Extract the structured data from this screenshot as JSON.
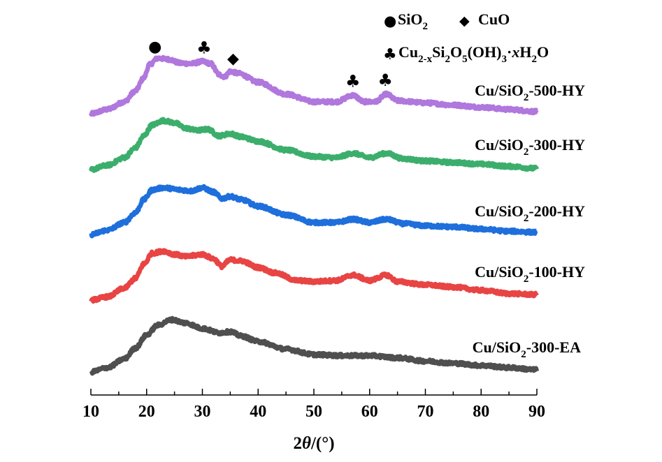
{
  "chart_data": {
    "type": "line",
    "title": "",
    "xlabel": "2θ/(°)",
    "xlabel_parts": {
      "prefix": "2",
      "theta": "θ",
      "suffix": "/(°)"
    },
    "ylabel": "",
    "xlim": [
      10,
      90
    ],
    "x_ticks": [
      "10",
      "20",
      "30",
      "40",
      "50",
      "60",
      "70",
      "80",
      "90"
    ],
    "x_tick_values": [
      10,
      20,
      30,
      40,
      50,
      60,
      70,
      80,
      90
    ],
    "x_minor_tick_step": 5,
    "y_axis_shown": false,
    "grid": false,
    "legend": {
      "placement": "top-right",
      "entries": [
        {
          "symbol": "circle",
          "glyph": "●",
          "label": "SiO",
          "sub": "2"
        },
        {
          "symbol": "diamond",
          "glyph": "◆",
          "label": "CuO"
        },
        {
          "symbol": "club",
          "glyph": "♣",
          "label_parts": [
            "Cu",
            "2-x",
            "Si",
            "2",
            "O",
            "5",
            "(OH)",
            "3",
            "·",
            "x",
            "H",
            "2",
            "O"
          ],
          "label": "Cu2-xSi2O5(OH)3·xH2O"
        }
      ]
    },
    "peak_markers": [
      {
        "series": "Cu/SiO2-500-HY",
        "x": 21.5,
        "symbol": "circle",
        "glyph": "●"
      },
      {
        "series": "Cu/SiO2-500-HY",
        "x": 30.3,
        "symbol": "club",
        "glyph": "♣"
      },
      {
        "series": "Cu/SiO2-500-HY",
        "x": 35.5,
        "symbol": "diamond",
        "glyph": "◆"
      },
      {
        "series": "Cu/SiO2-500-HY",
        "x": 57.0,
        "symbol": "club",
        "glyph": "♣"
      },
      {
        "series": "Cu/SiO2-500-HY",
        "x": 62.8,
        "symbol": "club",
        "glyph": "♣"
      }
    ],
    "intensity_units": "a.u. (offset stacked, arbitrary)",
    "series": [
      {
        "name": "Cu/SiO2-500-HY",
        "label_main": "Cu/SiO",
        "label_sub": "2",
        "label_tail": "-500-HY",
        "color": "#b077dd",
        "offset": 4,
        "points": [
          [
            10,
            0.0
          ],
          [
            13,
            0.08
          ],
          [
            16,
            0.22
          ],
          [
            18,
            0.42
          ],
          [
            19.5,
            0.66
          ],
          [
            20.5,
            0.9
          ],
          [
            22,
            1.02
          ],
          [
            24,
            1.0
          ],
          [
            26,
            0.93
          ],
          [
            28,
            0.92
          ],
          [
            30,
            0.96
          ],
          [
            31.5,
            0.92
          ],
          [
            33,
            0.72
          ],
          [
            34,
            0.68
          ],
          [
            35,
            0.78
          ],
          [
            36.5,
            0.74
          ],
          [
            40,
            0.58
          ],
          [
            45,
            0.36
          ],
          [
            50,
            0.22
          ],
          [
            54,
            0.22
          ],
          [
            57,
            0.34
          ],
          [
            59,
            0.22
          ],
          [
            61,
            0.22
          ],
          [
            63,
            0.36
          ],
          [
            65,
            0.24
          ],
          [
            70,
            0.2
          ],
          [
            75,
            0.16
          ],
          [
            80,
            0.12
          ],
          [
            85,
            0.08
          ],
          [
            90,
            0.04
          ]
        ]
      },
      {
        "name": "Cu/SiO2-300-HY",
        "label_main": "Cu/SiO",
        "label_sub": "2",
        "label_tail": "-300-HY",
        "color": "#3cae6c",
        "offset": 3,
        "points": [
          [
            10,
            0.0
          ],
          [
            13,
            0.08
          ],
          [
            16,
            0.22
          ],
          [
            18,
            0.4
          ],
          [
            19.5,
            0.62
          ],
          [
            21,
            0.82
          ],
          [
            23,
            0.9
          ],
          [
            25,
            0.86
          ],
          [
            27,
            0.76
          ],
          [
            29,
            0.72
          ],
          [
            31,
            0.74
          ],
          [
            33,
            0.62
          ],
          [
            35,
            0.66
          ],
          [
            37,
            0.6
          ],
          [
            40,
            0.52
          ],
          [
            45,
            0.36
          ],
          [
            50,
            0.24
          ],
          [
            54,
            0.22
          ],
          [
            57,
            0.3
          ],
          [
            60,
            0.22
          ],
          [
            63,
            0.3
          ],
          [
            66,
            0.2
          ],
          [
            70,
            0.16
          ],
          [
            75,
            0.13
          ],
          [
            80,
            0.1
          ],
          [
            85,
            0.06
          ],
          [
            90,
            0.02
          ]
        ]
      },
      {
        "name": "Cu/SiO2-200-HY",
        "label_main": "Cu/SiO",
        "label_sub": "2",
        "label_tail": "-200-HY",
        "color": "#1e6fdc",
        "offset": 2,
        "points": [
          [
            10,
            0.0
          ],
          [
            13,
            0.08
          ],
          [
            16,
            0.22
          ],
          [
            18,
            0.4
          ],
          [
            19.5,
            0.64
          ],
          [
            21,
            0.82
          ],
          [
            23,
            0.86
          ],
          [
            26,
            0.82
          ],
          [
            28,
            0.8
          ],
          [
            30,
            0.86
          ],
          [
            32,
            0.78
          ],
          [
            33.5,
            0.66
          ],
          [
            35,
            0.7
          ],
          [
            37,
            0.64
          ],
          [
            40,
            0.52
          ],
          [
            45,
            0.36
          ],
          [
            50,
            0.22
          ],
          [
            54,
            0.22
          ],
          [
            57,
            0.28
          ],
          [
            60,
            0.22
          ],
          [
            63,
            0.28
          ],
          [
            66,
            0.2
          ],
          [
            70,
            0.16
          ],
          [
            75,
            0.14
          ],
          [
            80,
            0.1
          ],
          [
            85,
            0.06
          ],
          [
            90,
            0.04
          ]
        ]
      },
      {
        "name": "Cu/SiO2-100-HY",
        "label_main": "Cu/SiO",
        "label_sub": "2",
        "label_tail": "-100-HY",
        "color": "#e84444",
        "offset": 1,
        "points": [
          [
            10,
            0.0
          ],
          [
            13,
            0.06
          ],
          [
            16,
            0.22
          ],
          [
            18,
            0.4
          ],
          [
            19.5,
            0.66
          ],
          [
            21,
            0.86
          ],
          [
            23,
            0.9
          ],
          [
            25,
            0.84
          ],
          [
            27,
            0.8
          ],
          [
            30,
            0.84
          ],
          [
            32,
            0.76
          ],
          [
            33.5,
            0.62
          ],
          [
            35,
            0.74
          ],
          [
            37,
            0.72
          ],
          [
            40,
            0.6
          ],
          [
            43,
            0.5
          ],
          [
            47,
            0.36
          ],
          [
            50,
            0.34
          ],
          [
            54,
            0.36
          ],
          [
            57,
            0.46
          ],
          [
            60,
            0.36
          ],
          [
            63,
            0.46
          ],
          [
            65,
            0.34
          ],
          [
            70,
            0.28
          ],
          [
            75,
            0.24
          ],
          [
            80,
            0.18
          ],
          [
            85,
            0.12
          ],
          [
            90,
            0.1
          ]
        ]
      },
      {
        "name": "Cu/SiO2-300-EA",
        "label_main": "Cu/SiO",
        "label_sub": "2",
        "label_tail": "-300-EA",
        "color": "#4f4f4f",
        "offset": 0,
        "points": [
          [
            10,
            0.0
          ],
          [
            13,
            0.08
          ],
          [
            16,
            0.24
          ],
          [
            18,
            0.44
          ],
          [
            20,
            0.68
          ],
          [
            22,
            0.86
          ],
          [
            24.5,
            0.96
          ],
          [
            27,
            0.9
          ],
          [
            30,
            0.8
          ],
          [
            33,
            0.72
          ],
          [
            35,
            0.74
          ],
          [
            37,
            0.66
          ],
          [
            40,
            0.56
          ],
          [
            45,
            0.42
          ],
          [
            50,
            0.32
          ],
          [
            55,
            0.3
          ],
          [
            60,
            0.3
          ],
          [
            65,
            0.26
          ],
          [
            70,
            0.2
          ],
          [
            75,
            0.16
          ],
          [
            80,
            0.12
          ],
          [
            85,
            0.08
          ],
          [
            90,
            0.04
          ]
        ]
      }
    ]
  }
}
